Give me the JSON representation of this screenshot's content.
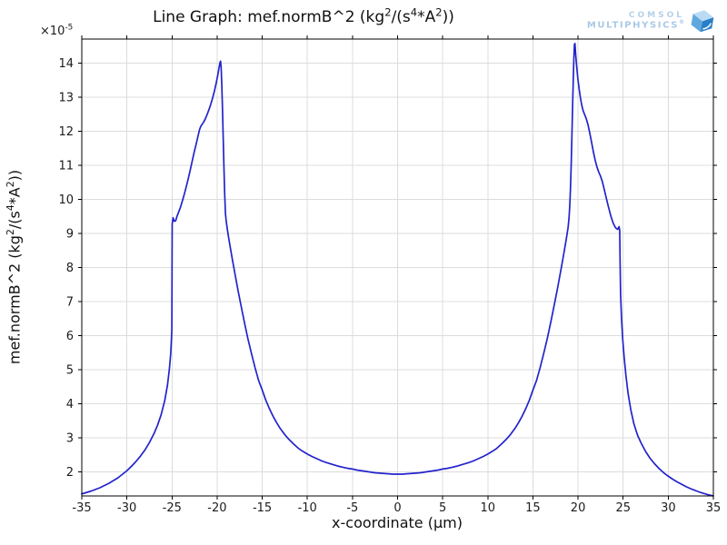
{
  "header": {
    "logo": {
      "line1": "COMSOL",
      "line2": "MULTIPHYSICS",
      "registered": "®",
      "text_color": "#a9c9e6",
      "cube_colors": {
        "top": "#b9dcf4",
        "left": "#5fa8de",
        "right": "#2a7ec7"
      }
    }
  },
  "chart_data": {
    "type": "line",
    "title": "Line Graph: mef.normB^2 (kg^2/(s^4*A^2))",
    "title_segments": [
      {
        "t": "Line Graph: mef.normB^2 (kg"
      },
      {
        "t": "2",
        "sup": true
      },
      {
        "t": "/(s"
      },
      {
        "t": "4",
        "sup": true
      },
      {
        "t": "*A"
      },
      {
        "t": "2",
        "sup": true
      },
      {
        "t": "))"
      }
    ],
    "xlabel": "x-coordinate (µm)",
    "ylabel": "mef.normB^2 (kg^2/(s^4*A^2))",
    "ylabel_segments": [
      {
        "t": "mef.normB^2 (kg"
      },
      {
        "t": "2",
        "sup": true
      },
      {
        "t": "/(s"
      },
      {
        "t": "4",
        "sup": true
      },
      {
        "t": "*A"
      },
      {
        "t": "2",
        "sup": true
      },
      {
        "t": "))"
      }
    ],
    "y_exponent_segments": [
      {
        "t": "×10"
      },
      {
        "t": "-5",
        "sup": true
      }
    ],
    "xlim": [
      -35,
      35
    ],
    "ylim": [
      1.29,
      14.71
    ],
    "x_ticks": [
      -35,
      -30,
      -25,
      -20,
      -15,
      -10,
      -5,
      0,
      5,
      10,
      15,
      20,
      25,
      30,
      35
    ],
    "y_ticks": [
      2,
      3,
      4,
      5,
      6,
      7,
      8,
      9,
      10,
      11,
      12,
      13,
      14
    ],
    "grid": true,
    "legend": "none",
    "line_color": "#2323cc",
    "grid_color": "#dcdcdc",
    "axis_color": "#000000",
    "tick_label_color": "#1c1c1c",
    "series": [
      {
        "name": "mef.normB^2 (kg^2/(s^4*A^2))",
        "points": [
          [
            -35,
            1.35
          ],
          [
            -34,
            1.43
          ],
          [
            -33,
            1.53
          ],
          [
            -32,
            1.66
          ],
          [
            -31,
            1.82
          ],
          [
            -30,
            2.03
          ],
          [
            -29.5,
            2.16
          ],
          [
            -29,
            2.3
          ],
          [
            -28.5,
            2.46
          ],
          [
            -28,
            2.64
          ],
          [
            -27.5,
            2.86
          ],
          [
            -27,
            3.12
          ],
          [
            -26.6,
            3.37
          ],
          [
            -26.2,
            3.68
          ],
          [
            -25.8,
            4.1
          ],
          [
            -25.5,
            4.55
          ],
          [
            -25.3,
            5.0
          ],
          [
            -25.15,
            5.45
          ],
          [
            -25.08,
            5.8
          ],
          [
            -25.02,
            6.15
          ],
          [
            -24.98,
            9.28
          ],
          [
            -24.88,
            9.46
          ],
          [
            -24.75,
            9.36
          ],
          [
            -24.6,
            9.37
          ],
          [
            -24.45,
            9.5
          ],
          [
            -24.25,
            9.64
          ],
          [
            -24.05,
            9.78
          ],
          [
            -23.8,
            10.0
          ],
          [
            -23.55,
            10.24
          ],
          [
            -23.3,
            10.5
          ],
          [
            -23.05,
            10.78
          ],
          [
            -22.8,
            11.08
          ],
          [
            -22.55,
            11.38
          ],
          [
            -22.3,
            11.65
          ],
          [
            -22.1,
            11.88
          ],
          [
            -21.95,
            12.05
          ],
          [
            -21.82,
            12.14
          ],
          [
            -21.68,
            12.2
          ],
          [
            -21.5,
            12.27
          ],
          [
            -21.3,
            12.37
          ],
          [
            -21.1,
            12.5
          ],
          [
            -20.9,
            12.64
          ],
          [
            -20.7,
            12.8
          ],
          [
            -20.5,
            12.98
          ],
          [
            -20.3,
            13.18
          ],
          [
            -20.1,
            13.42
          ],
          [
            -19.95,
            13.62
          ],
          [
            -19.8,
            13.85
          ],
          [
            -19.68,
            14.02
          ],
          [
            -19.62,
            14.06
          ],
          [
            -19.55,
            13.85
          ],
          [
            -19.48,
            13.35
          ],
          [
            -19.4,
            12.6
          ],
          [
            -19.32,
            11.75
          ],
          [
            -19.24,
            10.9
          ],
          [
            -19.16,
            10.15
          ],
          [
            -19.08,
            9.6
          ],
          [
            -19.0,
            9.38
          ],
          [
            -18.9,
            9.18
          ],
          [
            -18.75,
            8.92
          ],
          [
            -18.55,
            8.6
          ],
          [
            -18.3,
            8.22
          ],
          [
            -18.0,
            7.78
          ],
          [
            -17.7,
            7.35
          ],
          [
            -17.35,
            6.88
          ],
          [
            -17.0,
            6.42
          ],
          [
            -16.6,
            5.92
          ],
          [
            -16.2,
            5.48
          ],
          [
            -15.8,
            5.06
          ],
          [
            -15.4,
            4.68
          ],
          [
            -15.0,
            4.4
          ],
          [
            -14.6,
            4.1
          ],
          [
            -14.2,
            3.85
          ],
          [
            -13.8,
            3.63
          ],
          [
            -13.4,
            3.44
          ],
          [
            -13.0,
            3.27
          ],
          [
            -12.5,
            3.09
          ],
          [
            -12.0,
            2.94
          ],
          [
            -11.5,
            2.81
          ],
          [
            -11.0,
            2.69
          ],
          [
            -10.5,
            2.6
          ],
          [
            -10.0,
            2.52
          ],
          [
            -9.5,
            2.45
          ],
          [
            -9.0,
            2.39
          ],
          [
            -8.5,
            2.33
          ],
          [
            -8.0,
            2.28
          ],
          [
            -7.5,
            2.24
          ],
          [
            -7.0,
            2.2
          ],
          [
            -6.5,
            2.16
          ],
          [
            -6.0,
            2.13
          ],
          [
            -5.5,
            2.1
          ],
          [
            -5.0,
            2.08
          ],
          [
            -4.5,
            2.05
          ],
          [
            -4.0,
            2.03
          ],
          [
            -3.5,
            2.01
          ],
          [
            -3.0,
            1.99
          ],
          [
            -2.5,
            1.97
          ],
          [
            -2.0,
            1.96
          ],
          [
            -1.5,
            1.95
          ],
          [
            -1.0,
            1.94
          ],
          [
            -0.5,
            1.93
          ],
          [
            0,
            1.93
          ],
          [
            0.5,
            1.93
          ],
          [
            1,
            1.94
          ],
          [
            1.5,
            1.95
          ],
          [
            2,
            1.96
          ],
          [
            2.5,
            1.97
          ],
          [
            3,
            1.99
          ],
          [
            3.5,
            2.01
          ],
          [
            4,
            2.03
          ],
          [
            4.5,
            2.05
          ],
          [
            5,
            2.08
          ],
          [
            5.5,
            2.1
          ],
          [
            6,
            2.13
          ],
          [
            6.5,
            2.16
          ],
          [
            7,
            2.2
          ],
          [
            7.5,
            2.24
          ],
          [
            8,
            2.28
          ],
          [
            8.5,
            2.33
          ],
          [
            9,
            2.39
          ],
          [
            9.5,
            2.45
          ],
          [
            10,
            2.52
          ],
          [
            10.5,
            2.6
          ],
          [
            11,
            2.69
          ],
          [
            11.5,
            2.81
          ],
          [
            12,
            2.94
          ],
          [
            12.5,
            3.09
          ],
          [
            13,
            3.27
          ],
          [
            13.4,
            3.44
          ],
          [
            13.8,
            3.63
          ],
          [
            14.2,
            3.85
          ],
          [
            14.6,
            4.1
          ],
          [
            15,
            4.4
          ],
          [
            15.4,
            4.68
          ],
          [
            15.8,
            5.06
          ],
          [
            16.2,
            5.48
          ],
          [
            16.6,
            5.92
          ],
          [
            17,
            6.42
          ],
          [
            17.35,
            6.88
          ],
          [
            17.7,
            7.35
          ],
          [
            18,
            7.78
          ],
          [
            18.3,
            8.22
          ],
          [
            18.55,
            8.6
          ],
          [
            18.75,
            8.92
          ],
          [
            18.9,
            9.18
          ],
          [
            19.0,
            9.45
          ],
          [
            19.08,
            9.8
          ],
          [
            19.16,
            10.3
          ],
          [
            19.24,
            11.0
          ],
          [
            19.32,
            11.85
          ],
          [
            19.4,
            12.75
          ],
          [
            19.48,
            13.6
          ],
          [
            19.54,
            14.15
          ],
          [
            19.6,
            14.55
          ],
          [
            19.66,
            14.58
          ],
          [
            19.74,
            14.25
          ],
          [
            19.85,
            13.9
          ],
          [
            19.98,
            13.55
          ],
          [
            20.12,
            13.25
          ],
          [
            20.27,
            12.98
          ],
          [
            20.42,
            12.76
          ],
          [
            20.57,
            12.6
          ],
          [
            20.72,
            12.5
          ],
          [
            20.9,
            12.38
          ],
          [
            21.1,
            12.2
          ],
          [
            21.3,
            11.95
          ],
          [
            21.5,
            11.68
          ],
          [
            21.7,
            11.4
          ],
          [
            21.9,
            11.15
          ],
          [
            22.1,
            10.95
          ],
          [
            22.3,
            10.8
          ],
          [
            22.5,
            10.68
          ],
          [
            22.7,
            10.52
          ],
          [
            22.9,
            10.3
          ],
          [
            23.15,
            10.02
          ],
          [
            23.4,
            9.75
          ],
          [
            23.65,
            9.5
          ],
          [
            23.9,
            9.3
          ],
          [
            24.15,
            9.17
          ],
          [
            24.4,
            9.12
          ],
          [
            24.55,
            9.2
          ],
          [
            24.62,
            9.08
          ],
          [
            24.66,
            8.2
          ],
          [
            24.72,
            7.2
          ],
          [
            24.82,
            6.5
          ],
          [
            24.95,
            5.9
          ],
          [
            25.1,
            5.4
          ],
          [
            25.3,
            4.85
          ],
          [
            25.55,
            4.3
          ],
          [
            25.85,
            3.82
          ],
          [
            26.2,
            3.4
          ],
          [
            26.6,
            3.07
          ],
          [
            27,
            2.84
          ],
          [
            27.5,
            2.59
          ],
          [
            28,
            2.39
          ],
          [
            28.5,
            2.23
          ],
          [
            29,
            2.09
          ],
          [
            29.5,
            1.97
          ],
          [
            30,
            1.87
          ],
          [
            30.5,
            1.78
          ],
          [
            31,
            1.7
          ],
          [
            31.5,
            1.63
          ],
          [
            32,
            1.56
          ],
          [
            32.5,
            1.5
          ],
          [
            33,
            1.45
          ],
          [
            33.5,
            1.4
          ],
          [
            34,
            1.36
          ],
          [
            34.5,
            1.32
          ],
          [
            35,
            1.29
          ]
        ]
      }
    ]
  }
}
